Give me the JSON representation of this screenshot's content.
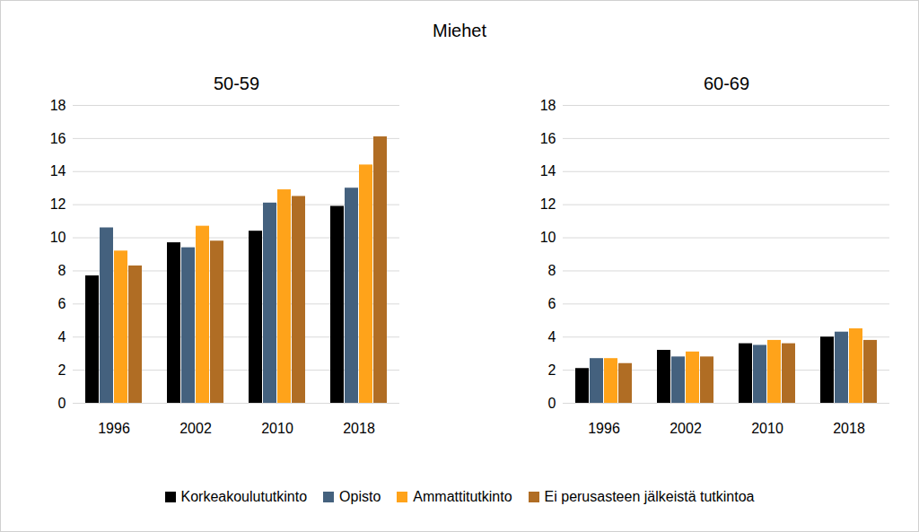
{
  "chart_data": {
    "type": "bar",
    "title": "Miehet",
    "categories": [
      "1996",
      "2002",
      "2010",
      "2018"
    ],
    "ylim": [
      0,
      18
    ],
    "yticks": [
      0,
      2,
      4,
      6,
      8,
      10,
      12,
      14,
      16,
      18
    ],
    "grid": true,
    "legend": "bottom",
    "panels": [
      {
        "title": "50-59",
        "series": [
          {
            "name": "Korkeakoulututkinto",
            "color": "#000000",
            "values": [
              7.7,
              9.7,
              10.4,
              11.9
            ]
          },
          {
            "name": "Opisto",
            "color": "#44617e",
            "values": [
              10.6,
              9.4,
              12.1,
              13.0
            ]
          },
          {
            "name": "Ammattitutkinto",
            "color": "#ffa31a",
            "values": [
              9.2,
              10.7,
              12.9,
              14.4
            ]
          },
          {
            "name": "Ei perusasteen jälkeistä tutkintoa",
            "color": "#b06d24",
            "values": [
              8.3,
              9.8,
              12.5,
              16.1
            ]
          }
        ]
      },
      {
        "title": "60-69",
        "series": [
          {
            "name": "Korkeakoulututkinto",
            "color": "#000000",
            "values": [
              2.1,
              3.2,
              3.6,
              4.0
            ]
          },
          {
            "name": "Opisto",
            "color": "#44617e",
            "values": [
              2.7,
              2.8,
              3.5,
              4.3
            ]
          },
          {
            "name": "Ammattitutkinto",
            "color": "#ffa31a",
            "values": [
              2.7,
              3.1,
              3.8,
              4.5
            ]
          },
          {
            "name": "Ei perusasteen jälkeistä tutkintoa",
            "color": "#b06d24",
            "values": [
              2.4,
              2.8,
              3.6,
              3.8
            ]
          }
        ]
      }
    ]
  }
}
